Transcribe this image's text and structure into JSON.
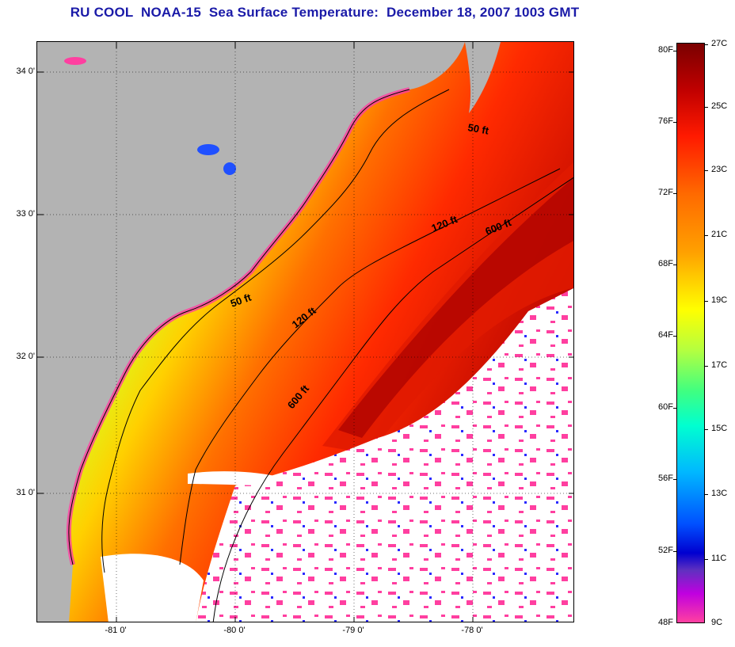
{
  "title": "RU COOL  NOAA-15  Sea Surface Temperature:  December 18, 2007 1003 GMT",
  "lat_labels": [
    "34 0'",
    "33 0'",
    "32 0'",
    "31 0'"
  ],
  "lon_labels": [
    "-81 0'",
    "-80 0'",
    "-79 0'",
    "-78 0'"
  ],
  "contour_labels": {
    "c50_north": "50 ft",
    "c50_south": "50 ft",
    "c120_north": "120 ft",
    "c120_south": "120 ft",
    "c600_north": "600 ft",
    "c600_south": "600 ft"
  },
  "colorbar": {
    "fahrenheit": [
      "80F",
      "76F",
      "72F",
      "68F",
      "64F",
      "60F",
      "56F",
      "52F",
      "48F"
    ],
    "celsius": [
      "27C",
      "25C",
      "23C",
      "21C",
      "19C",
      "17C",
      "15C",
      "13C",
      "11C",
      "9C"
    ]
  },
  "colors": {
    "land": "#b3b3b3",
    "title": "#1a1aa8",
    "cloud": "#ffffff",
    "cloud_speckle": "#ff3fa0"
  }
}
